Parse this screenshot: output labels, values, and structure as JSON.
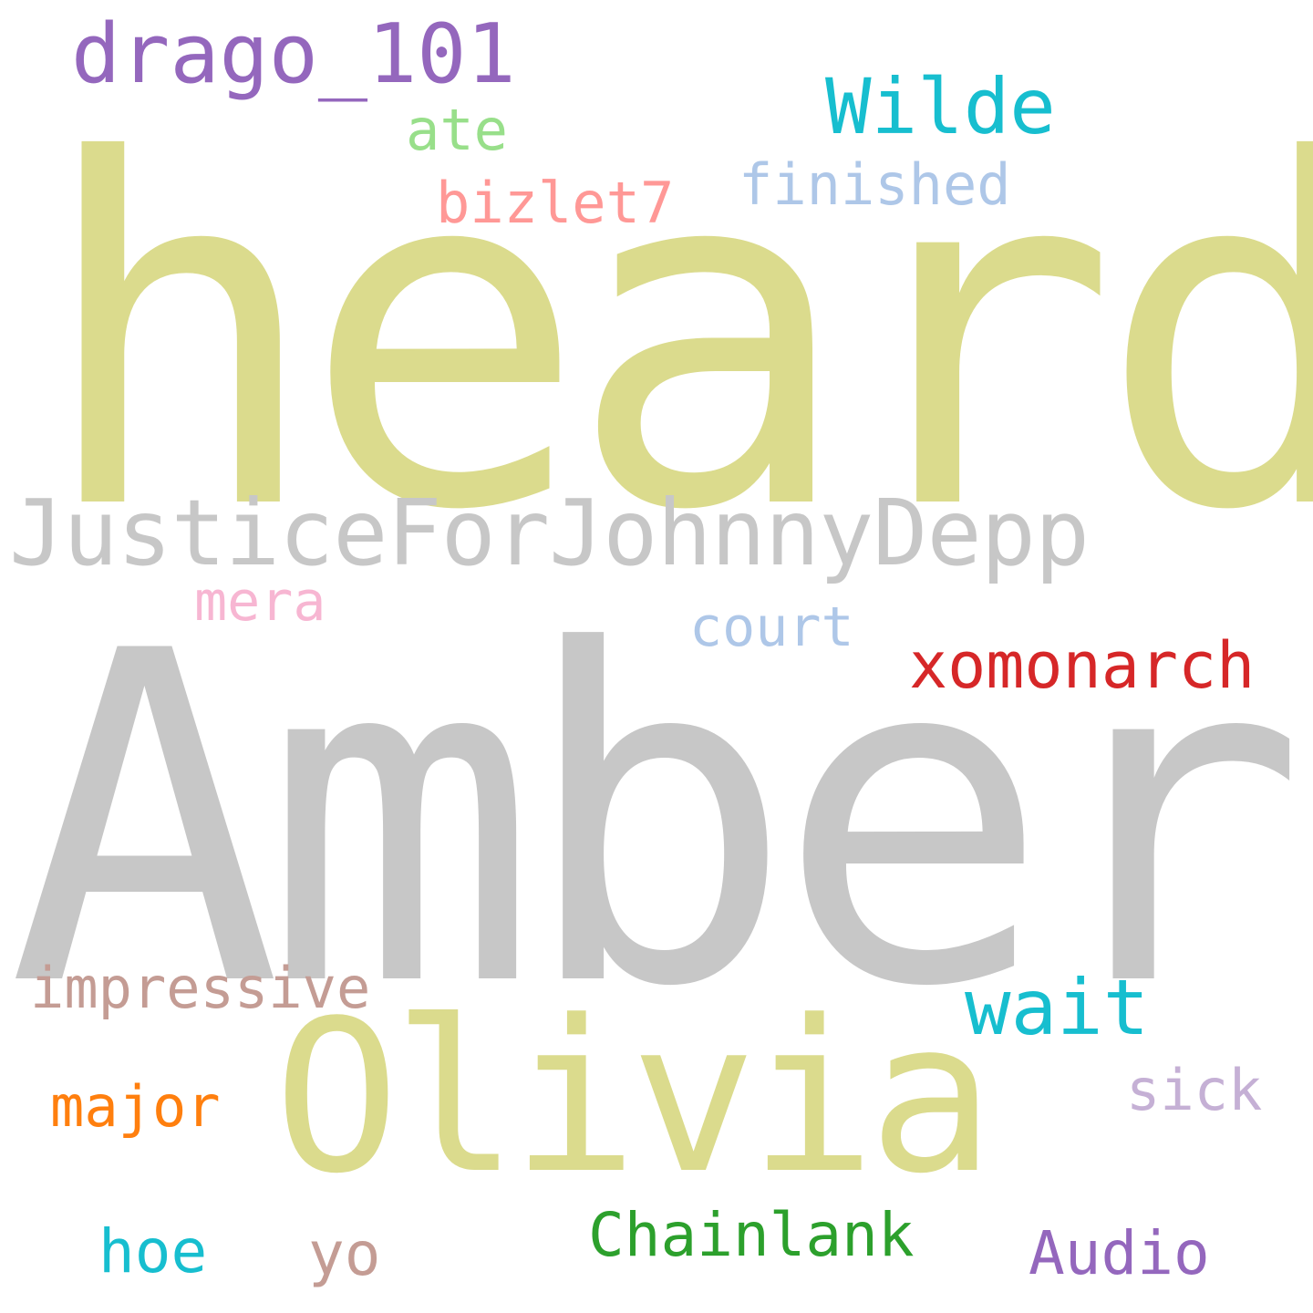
{
  "words": {
    "heard": {
      "text": "heard",
      "color": "#dbdb8d"
    },
    "amber": {
      "text": "Amber",
      "color": "#c7c7c7"
    },
    "justicefor": {
      "text": "JusticeForJohnnyDepp",
      "color": "#c7c7c7"
    },
    "olivia": {
      "text": "Olivia",
      "color": "#dbdb8d"
    },
    "drago": {
      "text": "drago_101",
      "color": "#9467bd"
    },
    "wilde": {
      "text": "Wilde",
      "color": "#17becf"
    },
    "ate": {
      "text": "ate",
      "color": "#98df8a"
    },
    "finished": {
      "text": "finished",
      "color": "#aec7e8"
    },
    "bizlet": {
      "text": "bizlet7",
      "color": "#ff9896"
    },
    "mera": {
      "text": "mera",
      "color": "#f7b6d2"
    },
    "court": {
      "text": "court",
      "color": "#aec7e8"
    },
    "xomonarch": {
      "text": "xomonarch",
      "color": "#d62728"
    },
    "impressive": {
      "text": "impressive",
      "color": "#c49c94"
    },
    "wait": {
      "text": "wait",
      "color": "#17becf"
    },
    "sick": {
      "text": "sick",
      "color": "#c5b0d5"
    },
    "major": {
      "text": "major",
      "color": "#ff7f0e"
    },
    "chainlank": {
      "text": "Chainlank",
      "color": "#2ca02c"
    },
    "hoe": {
      "text": "hoe",
      "color": "#17becf"
    },
    "yo": {
      "text": "yo",
      "color": "#c49c94"
    },
    "audio": {
      "text": "Audio",
      "color": "#9467bd"
    }
  }
}
